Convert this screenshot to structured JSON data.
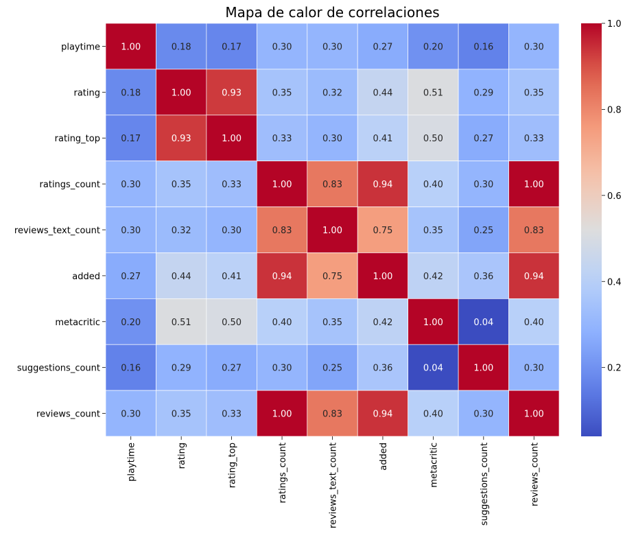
{
  "chart_data": {
    "type": "heatmap",
    "title": "Mapa de calor de correlaciones",
    "colormap": "coolwarm",
    "row_labels": [
      "playtime",
      "rating",
      "rating_top",
      "ratings_count",
      "reviews_text_count",
      "added",
      "metacritic",
      "suggestions_count",
      "reviews_count"
    ],
    "col_labels": [
      "playtime",
      "rating",
      "rating_top",
      "ratings_count",
      "reviews_text_count",
      "added",
      "metacritic",
      "suggestions_count",
      "reviews_count"
    ],
    "values": [
      [
        1.0,
        0.18,
        0.17,
        0.3,
        0.3,
        0.27,
        0.2,
        0.16,
        0.3
      ],
      [
        0.18,
        1.0,
        0.93,
        0.35,
        0.32,
        0.44,
        0.51,
        0.29,
        0.35
      ],
      [
        0.17,
        0.93,
        1.0,
        0.33,
        0.3,
        0.41,
        0.5,
        0.27,
        0.33
      ],
      [
        0.3,
        0.35,
        0.33,
        1.0,
        0.83,
        0.94,
        0.4,
        0.3,
        1.0
      ],
      [
        0.3,
        0.32,
        0.3,
        0.83,
        1.0,
        0.75,
        0.35,
        0.25,
        0.83
      ],
      [
        0.27,
        0.44,
        0.41,
        0.94,
        0.75,
        1.0,
        0.42,
        0.36,
        0.94
      ],
      [
        0.2,
        0.51,
        0.5,
        0.4,
        0.35,
        0.42,
        1.0,
        0.04,
        0.4
      ],
      [
        0.16,
        0.29,
        0.27,
        0.3,
        0.25,
        0.36,
        0.04,
        1.0,
        0.3
      ],
      [
        0.3,
        0.35,
        0.33,
        1.0,
        0.83,
        0.94,
        0.4,
        0.3,
        1.0
      ]
    ],
    "colorbar": {
      "range": [
        0.04,
        1.0
      ],
      "ticks": [
        0.2,
        0.4,
        0.6,
        0.8,
        1.0
      ],
      "tick_labels": [
        "0.2",
        "0.4",
        "0.6",
        "0.8",
        "1.0"
      ]
    },
    "annotations_format": "0.00",
    "grid": false
  }
}
